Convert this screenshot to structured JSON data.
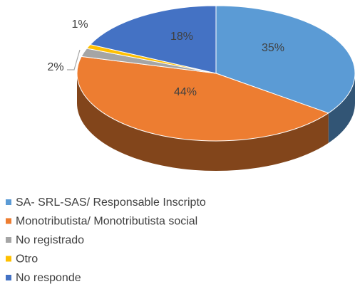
{
  "chart_data": {
    "type": "pie",
    "three_d": true,
    "categories": [
      "SA- SRL-SAS/ Responsable Inscripto",
      "Monotributista/ Monotributista social",
      "No registrado",
      "Otro",
      "No responde"
    ],
    "values": [
      35,
      44,
      2,
      1,
      18
    ],
    "value_labels": [
      "35%",
      "44%",
      "2%",
      "1%",
      "18%"
    ],
    "colors": [
      "#5b9bd5",
      "#ed7d31",
      "#a5a5a5",
      "#ffc000",
      "#4472c4"
    ],
    "legend": "bottom"
  }
}
